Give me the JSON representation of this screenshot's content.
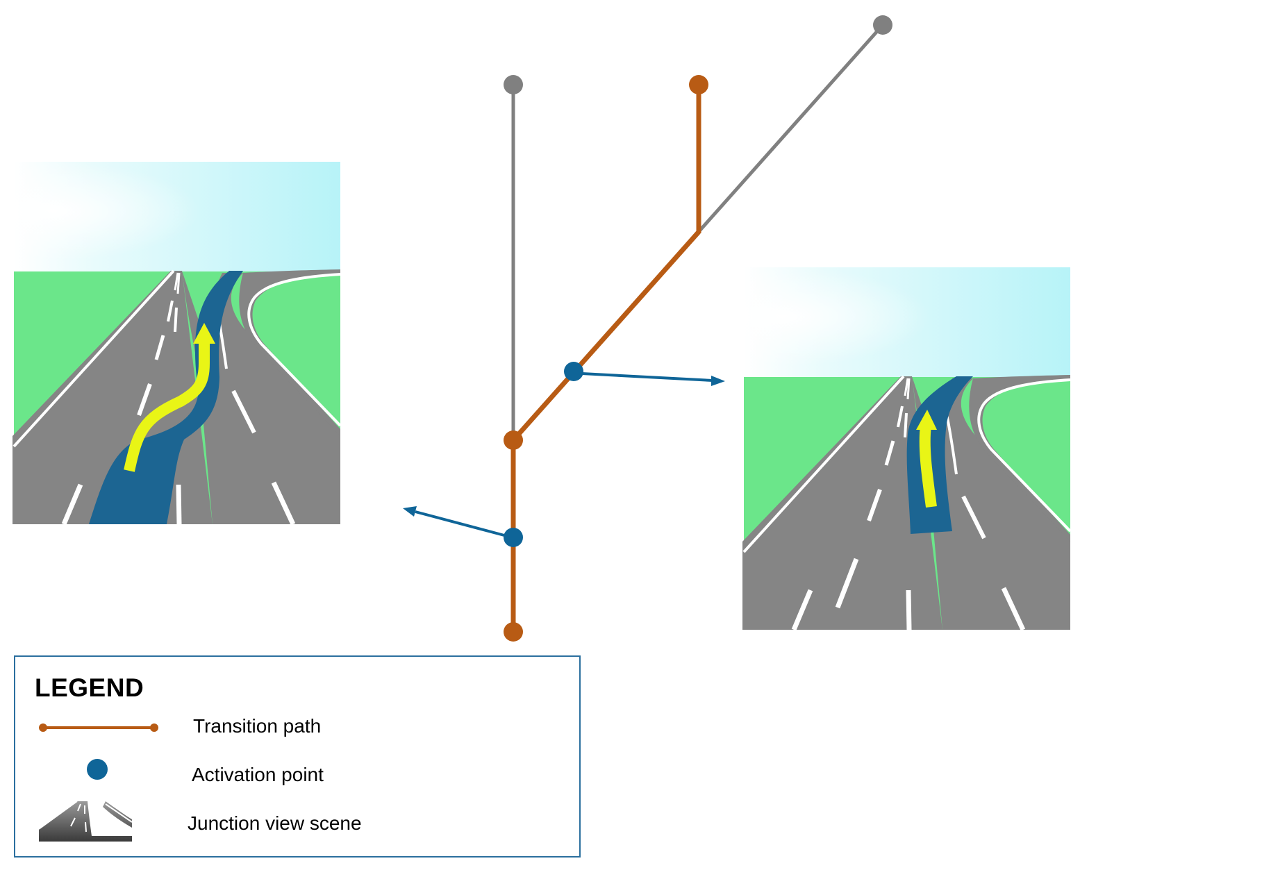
{
  "colors": {
    "transition_path": "#b85b14",
    "activation_point": "#0f6598",
    "inactive_path": "#808080",
    "grass": "#6be68a",
    "sky": "#b9f4f8",
    "road": "#858585",
    "lane_highlight": "#1c6592",
    "route_arrow": "#e9f516",
    "legend_border": "#2b6f9e"
  },
  "legend": {
    "title": "LEGEND",
    "items": [
      {
        "label": "Transition path",
        "symbol": "transition-path"
      },
      {
        "label": "Activation point",
        "symbol": "activation-point"
      },
      {
        "label": "Junction view scene",
        "symbol": "junction-view-scene"
      }
    ]
  }
}
